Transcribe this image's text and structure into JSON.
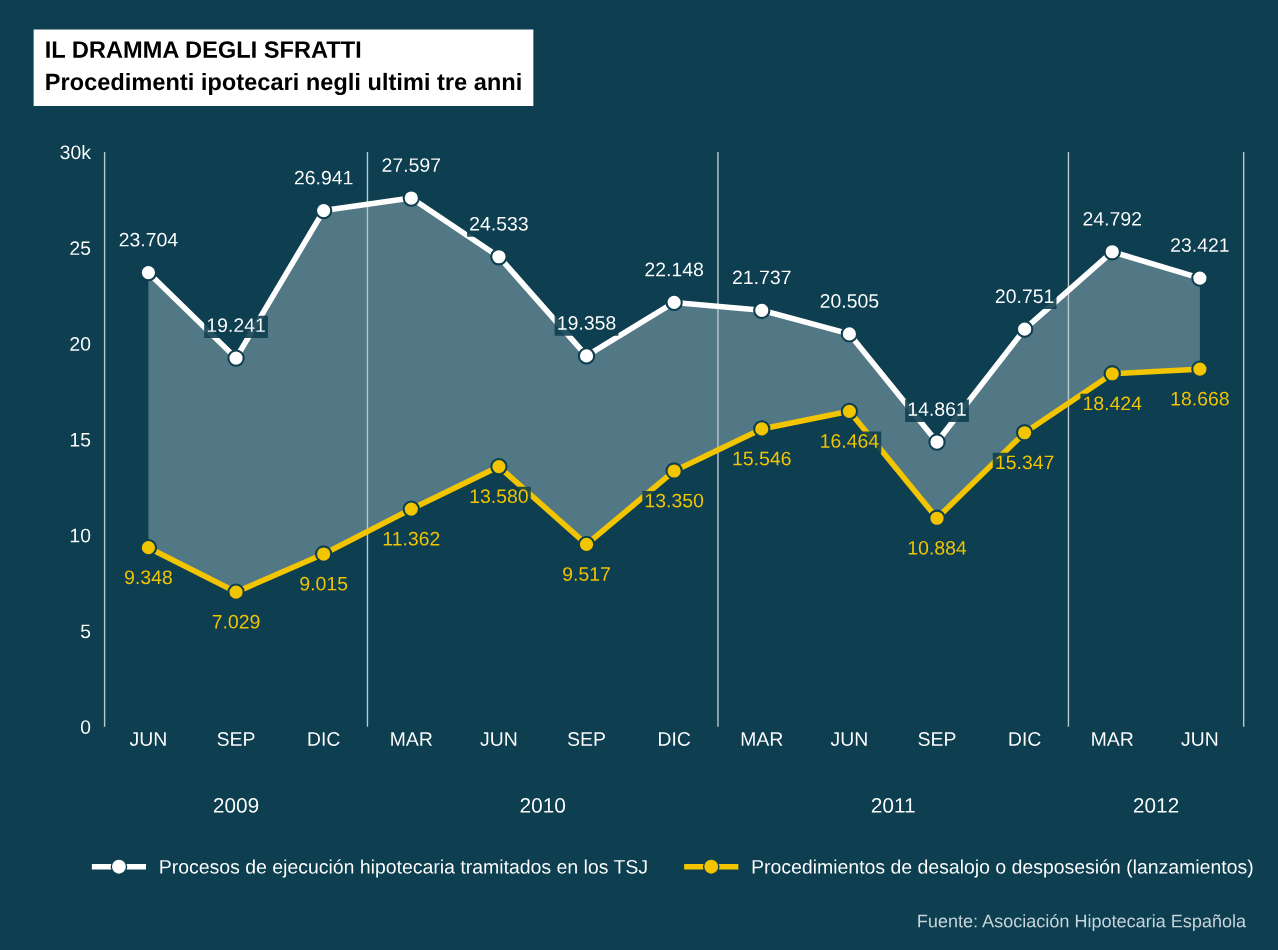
{
  "chart_data": {
    "type": "line",
    "title": "IL DRAMMA DEGLI SFRATTI",
    "subtitle": "Procedimenti ipotecari negli ultimi tre anni",
    "categories": [
      "JUN",
      "SEP",
      "DIC",
      "MAR",
      "JUN",
      "SEP",
      "DIC",
      "MAR",
      "JUN",
      "SEP",
      "DIC",
      "MAR",
      "JUN"
    ],
    "series": [
      {
        "name": "Procesos de ejecución hipotecaria tramitados en los TSJ",
        "color": "#ffffff",
        "values": [
          23.704,
          19.241,
          26.941,
          27.597,
          24.533,
          19.358,
          22.148,
          21.737,
          20.505,
          14.861,
          20.751,
          24.792,
          23.421
        ],
        "value_labels": [
          "23.704",
          "19.241",
          "26.941",
          "27.597",
          "24.533",
          "19.358",
          "22.148",
          "21.737",
          "20.505",
          "14.861",
          "20.751",
          "24.792",
          "23.421"
        ],
        "lower": [
          9.348,
          7.029,
          9.015,
          11.362,
          13.58,
          9.517,
          13.35,
          15.546,
          16.464,
          10.884,
          15.347,
          18.424,
          18.668
        ],
        "upper": [
          23.704,
          19.241,
          26.941,
          27.597,
          24.533,
          19.358,
          22.148,
          21.737,
          20.505,
          14.861,
          20.751,
          24.792,
          23.421
        ]
      },
      {
        "name": "Procedimientos de desalojo o desposesión (lanzamientos)",
        "color": "#f2c500",
        "values": [
          9.348,
          7.029,
          9.015,
          11.362,
          13.58,
          9.517,
          13.35,
          15.546,
          16.464,
          10.884,
          15.347,
          18.424,
          18.668
        ],
        "value_labels": [
          "9.348",
          "7.029",
          "9.015",
          "11.362",
          "13.580",
          "9.517",
          "13.350",
          "15.546",
          "16.464",
          "10.884",
          "15.347",
          "18.424",
          "18.668"
        ]
      }
    ],
    "ylim": [
      0,
      30
    ],
    "yticks": [
      0,
      5,
      10,
      15,
      20,
      25,
      {
        "value": 30,
        "label": "30k"
      }
    ],
    "grid": false,
    "legend": "bottom",
    "marker": "circle",
    "line_style": "solid",
    "annotations": [
      "2009",
      "2010",
      "2011",
      "2012",
      "Fuente: Asociación Hipotecaria Española"
    ]
  }
}
